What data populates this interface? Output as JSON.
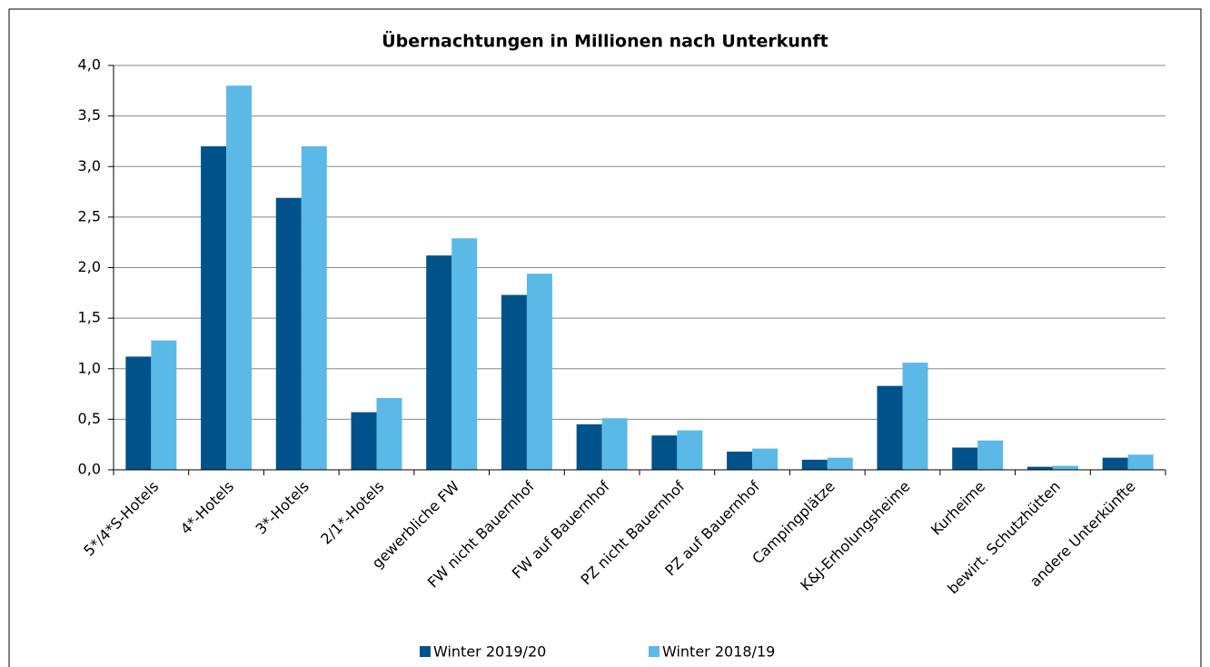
{
  "chart_data": {
    "type": "bar",
    "title": "Übernachtungen in Millionen nach Unterkunft",
    "categories": [
      "5*/4*S-Hotels",
      "4*-Hotels",
      "3*-Hotels",
      "2/1*-Hotels",
      "gewerbliche FW",
      "FW nicht Bauernhof",
      "FW auf Bauernhof",
      "PZ nicht Bauernhof",
      "PZ auf Bauernhof",
      "Campingplätze",
      "K&J-Erholungsheime",
      "Kurheime",
      "bewirt. Schutzhütten",
      "andere Unterkünfte"
    ],
    "series": [
      {
        "name": "Winter 2019/20",
        "color": "#00538a",
        "values": [
          1.12,
          3.2,
          2.69,
          0.57,
          2.12,
          1.73,
          0.45,
          0.34,
          0.18,
          0.1,
          0.83,
          0.22,
          0.03,
          0.12
        ]
      },
      {
        "name": "Winter 2018/19",
        "color": "#5bb9e8",
        "values": [
          1.28,
          3.8,
          3.2,
          0.71,
          2.29,
          1.94,
          0.51,
          0.39,
          0.21,
          0.12,
          1.06,
          0.29,
          0.04,
          0.15
        ]
      }
    ],
    "ylim": [
      0,
      4
    ],
    "yticks": [
      {
        "value": 0,
        "label": "0,0"
      },
      {
        "value": 0.5,
        "label": "0,5"
      },
      {
        "value": 1,
        "label": "1,0"
      },
      {
        "value": 1.5,
        "label": "1,5"
      },
      {
        "value": 2,
        "label": "2,0"
      },
      {
        "value": 2.5,
        "label": "2,5"
      },
      {
        "value": 3,
        "label": "3,0"
      },
      {
        "value": 3.5,
        "label": "3,5"
      },
      {
        "value": 4,
        "label": "4,0"
      }
    ],
    "grid": true,
    "legend": "bottom"
  }
}
